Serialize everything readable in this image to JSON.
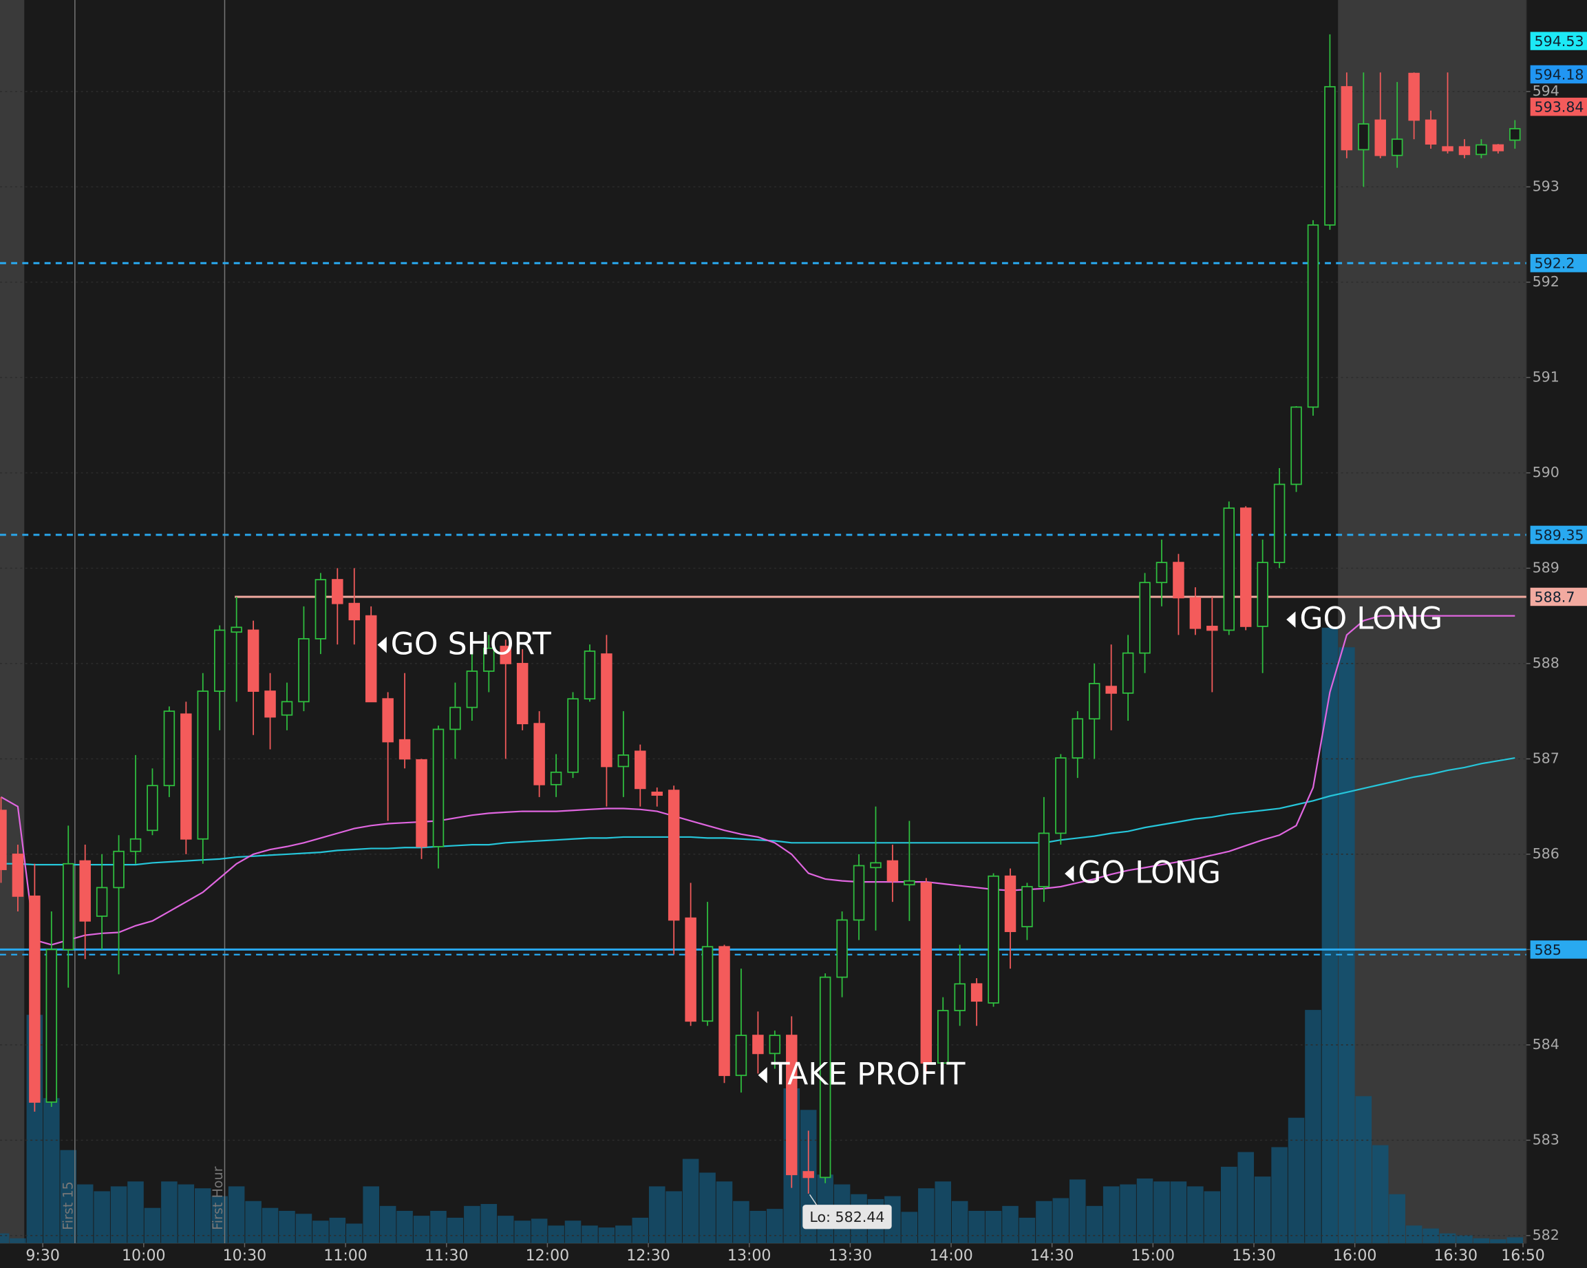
{
  "chart_data": {
    "type": "candlestick",
    "categories": [
      null,
      null,
      "9:30",
      null,
      null,
      null,
      null,
      null,
      "10:00",
      null,
      null,
      null,
      null,
      null,
      "10:30",
      null,
      null,
      null,
      null,
      null,
      "11:00",
      null,
      null,
      null,
      null,
      null,
      "11:30",
      null,
      null,
      null,
      null,
      null,
      "12:00",
      null,
      null,
      null,
      null,
      null,
      "12:30",
      null,
      null,
      null,
      null,
      null,
      "13:00",
      null,
      null,
      null,
      null,
      null,
      "13:30",
      null,
      null,
      null,
      null,
      null,
      "14:00",
      null,
      null,
      null,
      null,
      null,
      "14:30",
      null,
      null,
      null,
      null,
      null,
      "15:00",
      null,
      null,
      null,
      null,
      null,
      "15:30",
      null,
      null,
      null,
      null,
      null,
      "16:00",
      null,
      null,
      null,
      null,
      null,
      "16:30",
      null,
      null,
      null,
      "16:50"
    ],
    "open": [
      586.46,
      586.0,
      585.56,
      583.4,
      585.0,
      585.93,
      585.35,
      585.65,
      586.03,
      586.25,
      586.72,
      587.47,
      586.16,
      587.71,
      588.33,
      588.35,
      587.71,
      587.46,
      587.6,
      588.26,
      588.88,
      588.63,
      588.5,
      587.63,
      587.2,
      586.99,
      586.08,
      587.31,
      587.54,
      587.92,
      588.18,
      588.0,
      587.37,
      586.73,
      586.86,
      587.63,
      588.1,
      586.92,
      587.08,
      586.65,
      586.67,
      585.33,
      584.25,
      585.03,
      583.68,
      584.1,
      583.91,
      584.1,
      582.67,
      582.61,
      584.71,
      585.31,
      585.86,
      585.93,
      585.68,
      585.7,
      583.81,
      584.36,
      584.64,
      584.44,
      585.77,
      585.24,
      585.66,
      586.22,
      587.01,
      587.42,
      587.76,
      587.69,
      588.11,
      588.85,
      589.06,
      588.69,
      588.39,
      588.35,
      589.63,
      588.39,
      589.06,
      589.88,
      590.69,
      592.6,
      594.05,
      593.39,
      593.7,
      593.33,
      594.19,
      593.7,
      593.42,
      593.42,
      593.34,
      593.44,
      593.49
    ],
    "high": [
      586.6,
      586.1,
      585.9,
      585.4,
      586.3,
      586.1,
      586.0,
      586.2,
      587.04,
      586.9,
      587.55,
      587.6,
      587.9,
      588.4,
      588.7,
      588.45,
      587.9,
      587.8,
      588.6,
      588.95,
      589.0,
      589.0,
      588.6,
      587.7,
      587.9,
      587.0,
      587.35,
      587.8,
      588.3,
      588.3,
      588.25,
      588.15,
      587.5,
      587.05,
      587.7,
      588.2,
      588.3,
      587.5,
      587.15,
      586.7,
      586.72,
      585.7,
      585.5,
      585.05,
      584.8,
      584.35,
      584.15,
      584.3,
      583.1,
      584.75,
      585.4,
      586.0,
      586.5,
      586.1,
      586.35,
      585.75,
      584.5,
      585.05,
      584.7,
      585.8,
      585.85,
      585.7,
      586.6,
      587.05,
      587.5,
      588.0,
      588.2,
      588.3,
      588.95,
      589.3,
      589.15,
      588.8,
      588.7,
      589.7,
      589.65,
      589.3,
      590.05,
      590.7,
      592.65,
      594.6,
      594.2,
      594.2,
      594.2,
      594.1,
      594.2,
      593.8,
      594.2,
      593.5,
      593.5,
      593.45,
      593.7
    ],
    "low": [
      585.7,
      585.4,
      583.3,
      583.35,
      584.6,
      584.9,
      585.0,
      584.74,
      585.9,
      586.2,
      586.6,
      586.0,
      585.9,
      587.3,
      587.6,
      587.25,
      587.1,
      587.3,
      587.5,
      588.1,
      588.2,
      588.2,
      587.6,
      586.35,
      586.9,
      585.95,
      585.85,
      587.0,
      587.4,
      587.7,
      587.0,
      587.3,
      586.6,
      586.6,
      586.8,
      587.6,
      586.5,
      586.6,
      586.5,
      586.5,
      584.95,
      584.2,
      584.2,
      583.6,
      583.5,
      583.7,
      583.75,
      582.5,
      582.44,
      582.55,
      584.5,
      585.1,
      585.2,
      585.5,
      585.3,
      583.7,
      583.8,
      584.2,
      584.2,
      584.4,
      584.8,
      585.1,
      585.5,
      586.1,
      586.8,
      587.0,
      587.3,
      587.4,
      587.9,
      588.6,
      588.3,
      588.3,
      587.7,
      588.3,
      588.35,
      587.9,
      589.0,
      589.8,
      590.6,
      592.55,
      593.3,
      593.0,
      593.3,
      593.2,
      593.5,
      593.4,
      593.35,
      593.3,
      593.3,
      593.35,
      593.4
    ],
    "close": [
      585.84,
      585.56,
      583.4,
      585.0,
      585.9,
      585.3,
      585.65,
      586.03,
      586.16,
      586.72,
      587.5,
      586.16,
      587.71,
      588.35,
      588.38,
      587.71,
      587.44,
      587.6,
      588.26,
      588.88,
      588.63,
      588.46,
      587.6,
      587.18,
      587.0,
      586.08,
      587.31,
      587.54,
      587.92,
      588.16,
      588.0,
      587.37,
      586.73,
      586.86,
      587.63,
      588.13,
      586.92,
      587.04,
      586.69,
      586.62,
      585.31,
      584.25,
      585.03,
      583.68,
      584.1,
      583.91,
      584.1,
      582.64,
      582.61,
      584.71,
      585.31,
      585.88,
      585.91,
      585.72,
      585.72,
      583.81,
      584.36,
      584.64,
      584.46,
      585.77,
      585.19,
      585.66,
      586.22,
      587.01,
      587.42,
      587.79,
      587.69,
      588.11,
      588.85,
      589.06,
      588.69,
      588.37,
      588.35,
      589.63,
      588.39,
      589.06,
      589.88,
      590.69,
      592.6,
      594.05,
      593.39,
      593.66,
      593.33,
      593.5,
      593.7,
      593.45,
      593.38,
      593.34,
      593.44,
      593.38,
      593.61
    ],
    "volume": [
      10,
      5,
      233,
      148,
      95,
      60,
      53,
      58,
      63,
      36,
      63,
      60,
      56,
      48,
      58,
      43,
      36,
      33,
      30,
      23,
      26,
      20,
      58,
      38,
      33,
      28,
      33,
      26,
      38,
      40,
      28,
      23,
      25,
      18,
      23,
      18,
      16,
      18,
      26,
      58,
      53,
      86,
      72,
      63,
      43,
      33,
      35,
      158,
      136,
      70,
      60,
      50,
      45,
      48,
      32,
      56,
      63,
      43,
      33,
      33,
      38,
      26,
      43,
      46,
      65,
      38,
      58,
      60,
      66,
      63,
      63,
      58,
      53,
      78,
      93,
      68,
      98,
      128,
      238,
      628,
      608,
      150,
      100,
      50,
      18,
      15,
      10,
      8,
      5,
      4,
      6
    ],
    "up_color": "#2fbf3f",
    "down_color": "#f45b5b",
    "volume_color": "#15506e",
    "lines": [
      {
        "color": "#26c6da",
        "values": [
          585.9,
          585.9,
          585.89,
          585.89,
          585.89,
          585.89,
          585.89,
          585.89,
          585.89,
          585.91,
          585.92,
          585.93,
          585.94,
          585.95,
          585.97,
          585.98,
          585.99,
          586.0,
          586.01,
          586.02,
          586.04,
          586.05,
          586.06,
          586.06,
          586.07,
          586.07,
          586.08,
          586.09,
          586.1,
          586.1,
          586.12,
          586.13,
          586.14,
          586.15,
          586.16,
          586.17,
          586.17,
          586.18,
          586.18,
          586.18,
          586.18,
          586.18,
          586.17,
          586.17,
          586.16,
          586.15,
          586.14,
          586.12,
          586.12,
          586.12,
          586.12,
          586.12,
          586.12,
          586.12,
          586.12,
          586.12,
          586.12,
          586.12,
          586.12,
          586.12,
          586.12,
          586.12,
          586.12,
          586.15,
          586.17,
          586.19,
          586.22,
          586.24,
          586.28,
          586.31,
          586.34,
          586.37,
          586.39,
          586.42,
          586.44,
          586.46,
          586.48,
          586.52,
          586.56,
          586.61,
          586.65,
          586.69,
          586.73,
          586.77,
          586.81,
          586.84,
          586.88,
          586.91,
          586.95,
          586.98,
          587.01
        ]
      },
      {
        "color": "#e066e0",
        "values": [
          586.6,
          586.5,
          585.1,
          585.05,
          585.1,
          585.15,
          585.17,
          585.18,
          585.25,
          585.3,
          585.4,
          585.5,
          585.6,
          585.75,
          585.9,
          586.0,
          586.05,
          586.08,
          586.12,
          586.17,
          586.22,
          586.27,
          586.3,
          586.32,
          586.33,
          586.34,
          586.35,
          586.38,
          586.41,
          586.43,
          586.44,
          586.45,
          586.45,
          586.45,
          586.46,
          586.47,
          586.48,
          586.48,
          586.47,
          586.45,
          586.4,
          586.35,
          586.3,
          586.25,
          586.21,
          586.18,
          586.12,
          586.0,
          585.8,
          585.74,
          585.72,
          585.71,
          585.71,
          585.71,
          585.71,
          585.71,
          585.69,
          585.67,
          585.65,
          585.63,
          585.62,
          585.63,
          585.64,
          585.66,
          585.7,
          585.74,
          585.79,
          585.83,
          585.86,
          585.89,
          585.92,
          585.95,
          585.99,
          586.03,
          586.09,
          586.15,
          586.2,
          586.3,
          586.7,
          587.7,
          588.3,
          588.45,
          588.5,
          588.5,
          588.5,
          588.5,
          588.5,
          588.5,
          588.5,
          588.5,
          588.5
        ]
      }
    ],
    "levels": [
      {
        "value": 592.2,
        "color": "#29a9f0",
        "style": "dashed"
      },
      {
        "value": 589.35,
        "color": "#29a9f0",
        "style": "dashed"
      },
      {
        "value": 588.7,
        "color": "#f2aaa0",
        "style": "solid"
      },
      {
        "value": 585,
        "color": "#29a9f0",
        "style": "solid"
      }
    ],
    "flags": [
      {
        "value": 594.53,
        "color": "#1de9f6"
      },
      {
        "value": 594.18,
        "color": "#2196f3"
      },
      {
        "value": 593.84,
        "color": "#f45b5b"
      }
    ],
    "annotations": [
      "GO SHORT",
      "TAKE PROFIT",
      "GO LONG",
      "GO LONG"
    ],
    "low_label": "Lo: 582.44",
    "events": [
      "First 15",
      "First Hour"
    ],
    "ylim": [
      581.92,
      594.96
    ],
    "yticks": [
      582,
      583,
      584,
      585,
      586,
      587,
      588,
      589,
      590,
      591,
      592,
      593,
      594
    ],
    "grid": true
  }
}
